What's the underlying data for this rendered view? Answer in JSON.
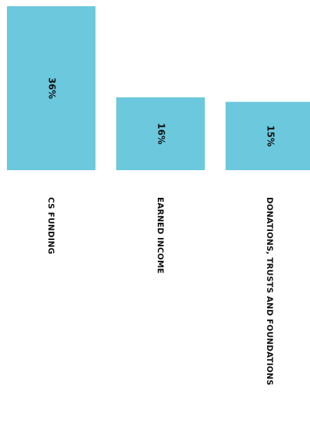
{
  "chart_data": {
    "type": "bar",
    "categories": [
      "CS FUNDING",
      "EARNED INCOME",
      "DONATIONS, TRUSTS AND FOUNDATIONS"
    ],
    "values": [
      36,
      16,
      15
    ],
    "value_labels": [
      "36%",
      "16%",
      "15%"
    ],
    "title": "",
    "xlabel": "",
    "ylabel": "",
    "ylim": [
      0,
      36
    ],
    "grid": false,
    "bar_color": "#6cc8dc",
    "text_orientation": "rotated-vertical"
  }
}
